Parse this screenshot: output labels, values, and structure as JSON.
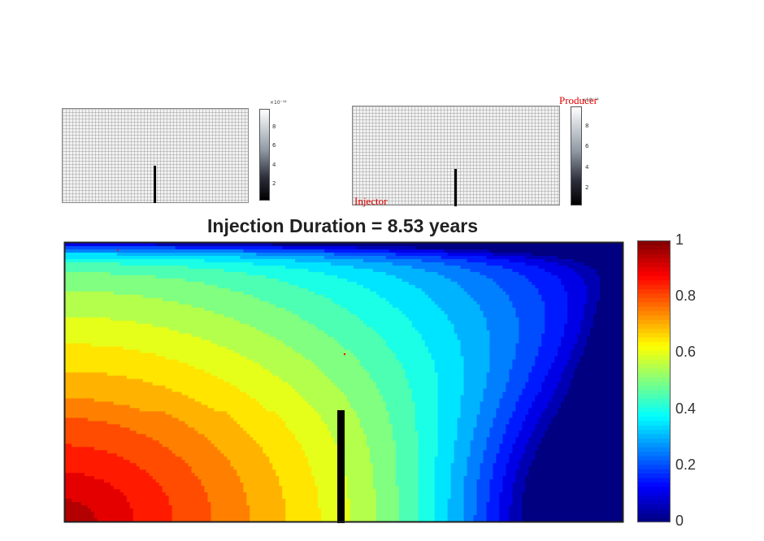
{
  "main_title": "Injection Duration = 8.53 years",
  "chart_data": [
    {
      "type": "heatmap",
      "description_role": "small permeability map (left)",
      "colormap": "gray",
      "colorbar": {
        "multiplier": "×10⁻¹⁴",
        "ticks": [
          "8",
          "6",
          "4",
          "2"
        ],
        "values": [
          8,
          6,
          4,
          2
        ]
      },
      "feature": "vertical barrier from bottom"
    },
    {
      "type": "heatmap",
      "description_role": "small permeability map (right)",
      "colormap": "gray",
      "colorbar": {
        "multiplier": "×10⁻¹⁴",
        "ticks": [
          "8",
          "6",
          "4",
          "2"
        ],
        "values": [
          8,
          6,
          4,
          2
        ]
      },
      "labels": {
        "producer": "Producer",
        "injector": "Injector"
      }
    },
    {
      "type": "heatmap",
      "title": "Injection Duration = 8.53 years",
      "colormap": "jet",
      "zlim": [
        0,
        1
      ],
      "colorbar": {
        "ticks": [
          "1",
          "0.8",
          "0.6",
          "0.4",
          "0.2",
          "0"
        ],
        "values": [
          1,
          0.8,
          0.6,
          0.4,
          0.2,
          0
        ]
      },
      "injector_corner": "bottom-left",
      "producer_corner": "top-right",
      "barrier_x_fraction": 0.5,
      "barrier_top_fraction": 0.4
    }
  ],
  "colors": {
    "jet": [
      "#00007f",
      "#0000ff",
      "#007fff",
      "#00ffff",
      "#7fff7f",
      "#ffff00",
      "#ff7f00",
      "#ff0000",
      "#7f0000"
    ],
    "label_red": "#e00000"
  }
}
